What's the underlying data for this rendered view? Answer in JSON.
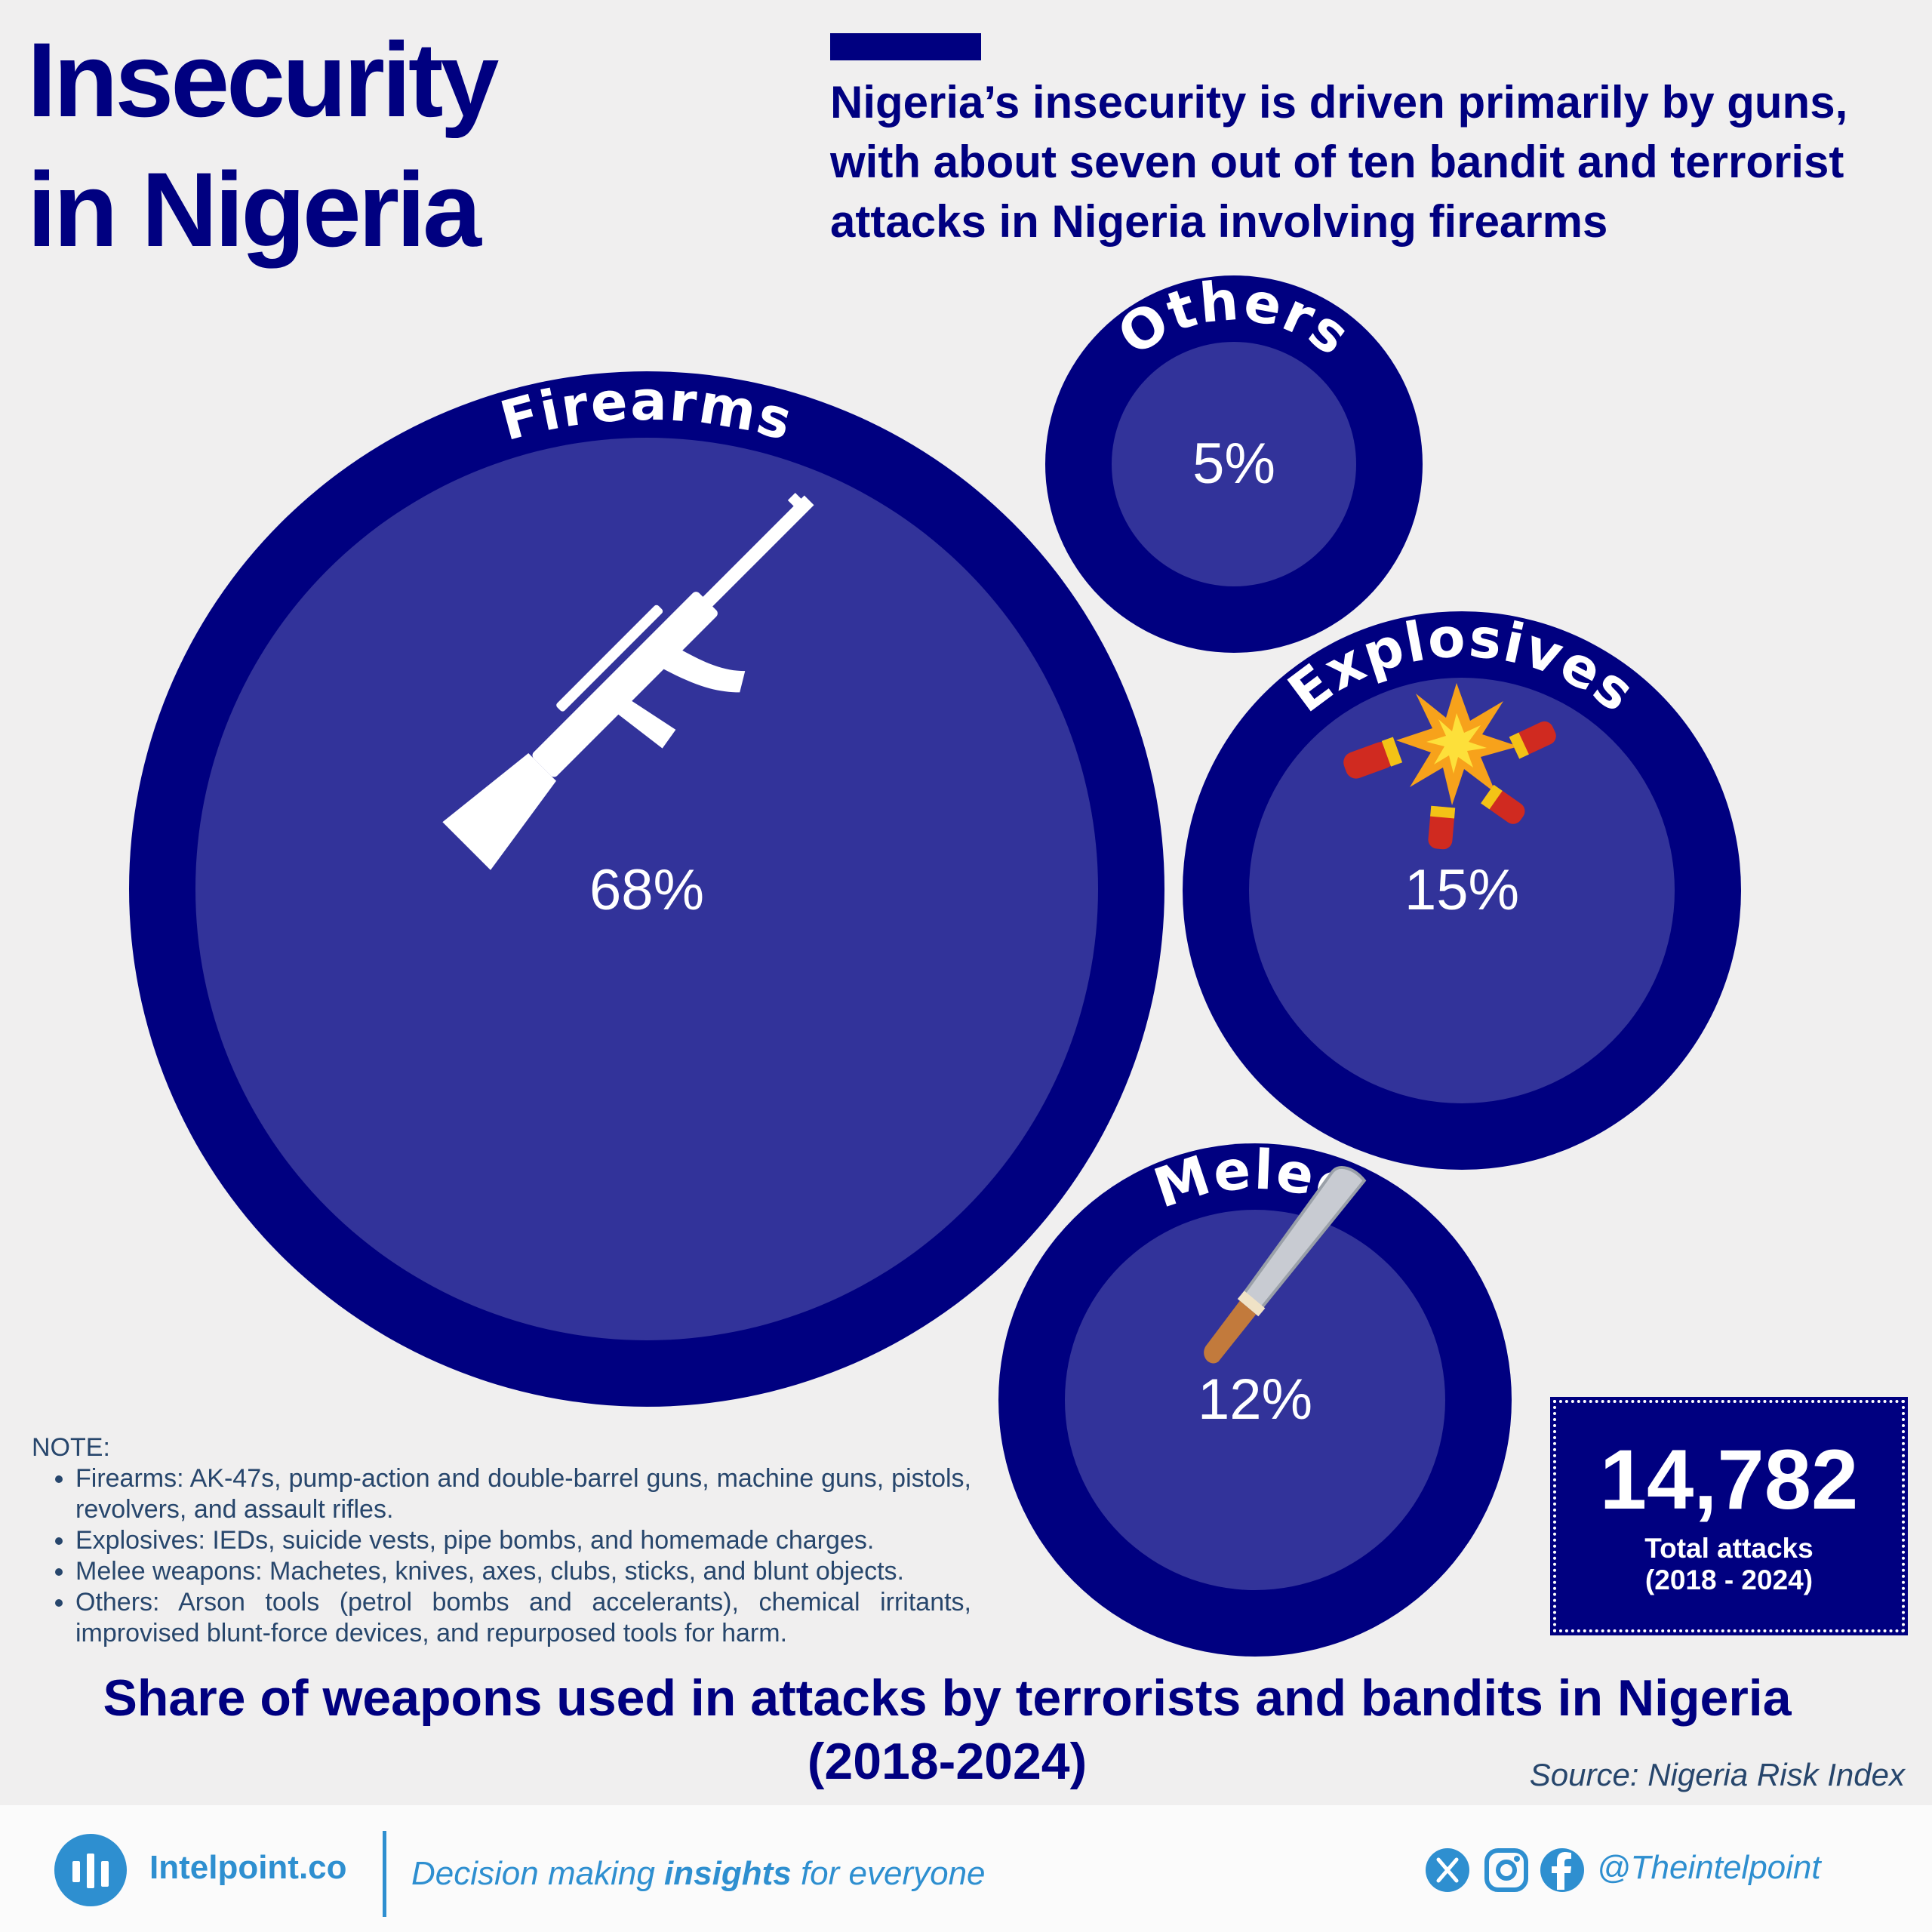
{
  "header": {
    "title": "Insecurity\nin Nigeria",
    "subtitle": "Nigeria’s insecurity is driven primarily by guns, with about seven out of ten bandit and terrorist attacks in Nigeria involving firearms"
  },
  "chart_data": {
    "type": "bubble",
    "title": "Share of weapons used in attacks by terrorists and bandits in Nigeria\n(2018-2024)",
    "unit": "%",
    "categories": [
      "Firearms",
      "Others",
      "Explosives",
      "Melee"
    ],
    "values": [
      68,
      5,
      15,
      12
    ],
    "value_labels": [
      "68%",
      "5%",
      "15%",
      "12%"
    ],
    "icons": [
      "rifle-icon",
      "",
      "explosion-icon",
      "machete-icon"
    ],
    "colors": {
      "outer": "#000080",
      "inner": "#32339a",
      "text": "#ffffff"
    }
  },
  "total": {
    "value": "14,782",
    "label": "Total attacks\n(2018 - 2024)"
  },
  "note": {
    "heading": "NOTE:",
    "items": [
      "Firearms: AK-47s, pump-action and double-barrel guns, machine guns, pistols, revolvers, and assault rifles.",
      "Explosives: IEDs, suicide vests, pipe bombs, and homemade charges.",
      "Melee weapons: Machetes, knives, axes, clubs, sticks, and blunt objects.",
      "Others: Arson tools (petrol bombs and accelerants), chemical irritants, improvised blunt-force devices, and repurposed tools for harm."
    ]
  },
  "source": "Source: Nigeria Risk Index",
  "footer": {
    "brand": "Intelpoint.co",
    "tagline_pre": "Decision making ",
    "tagline_bold": "insights",
    "tagline_post": " for everyone",
    "handle": "@Theintelpoint",
    "social_icons": [
      "x-icon",
      "instagram-icon",
      "facebook-icon"
    ]
  },
  "colors": {
    "navy": "#000080",
    "bubble_inner": "#32339a",
    "brand_blue": "#2e8fd0",
    "background": "#f0efef"
  }
}
